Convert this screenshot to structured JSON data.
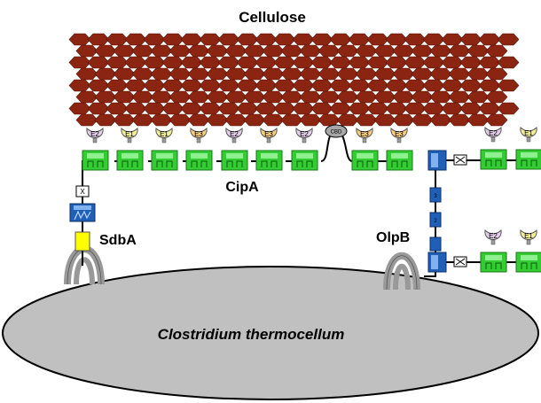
{
  "labels": {
    "cellulose": "Cellulose",
    "cipa": "CipA",
    "sdba": "SdbA",
    "olpb": "OlpB",
    "cell": "Clostridium thermocellum",
    "cbd": "CBD",
    "x_module": "X"
  },
  "cipa_enzymes": [
    "E2",
    "E1",
    "E1",
    "E3",
    "E2",
    "E3",
    "E2",
    "E3",
    "E3"
  ],
  "olpb_upper_enzymes": [
    "E2",
    "E1"
  ],
  "olpb_lower_enzymes": [
    "E2",
    "E1"
  ],
  "enzyme_colors": {
    "E1": "#f2ee9a",
    "E2": "#e3cde8",
    "E3": "#f6cc80"
  },
  "colors": {
    "cellulose": "#8b2512",
    "cohesin_green": "#33cc33",
    "anchor_blue": "#1f5fb8",
    "sdba_yellow": "#ffff00",
    "cell_grey": "#c0c0c0",
    "cbd_grey": "#a6a6a6"
  }
}
